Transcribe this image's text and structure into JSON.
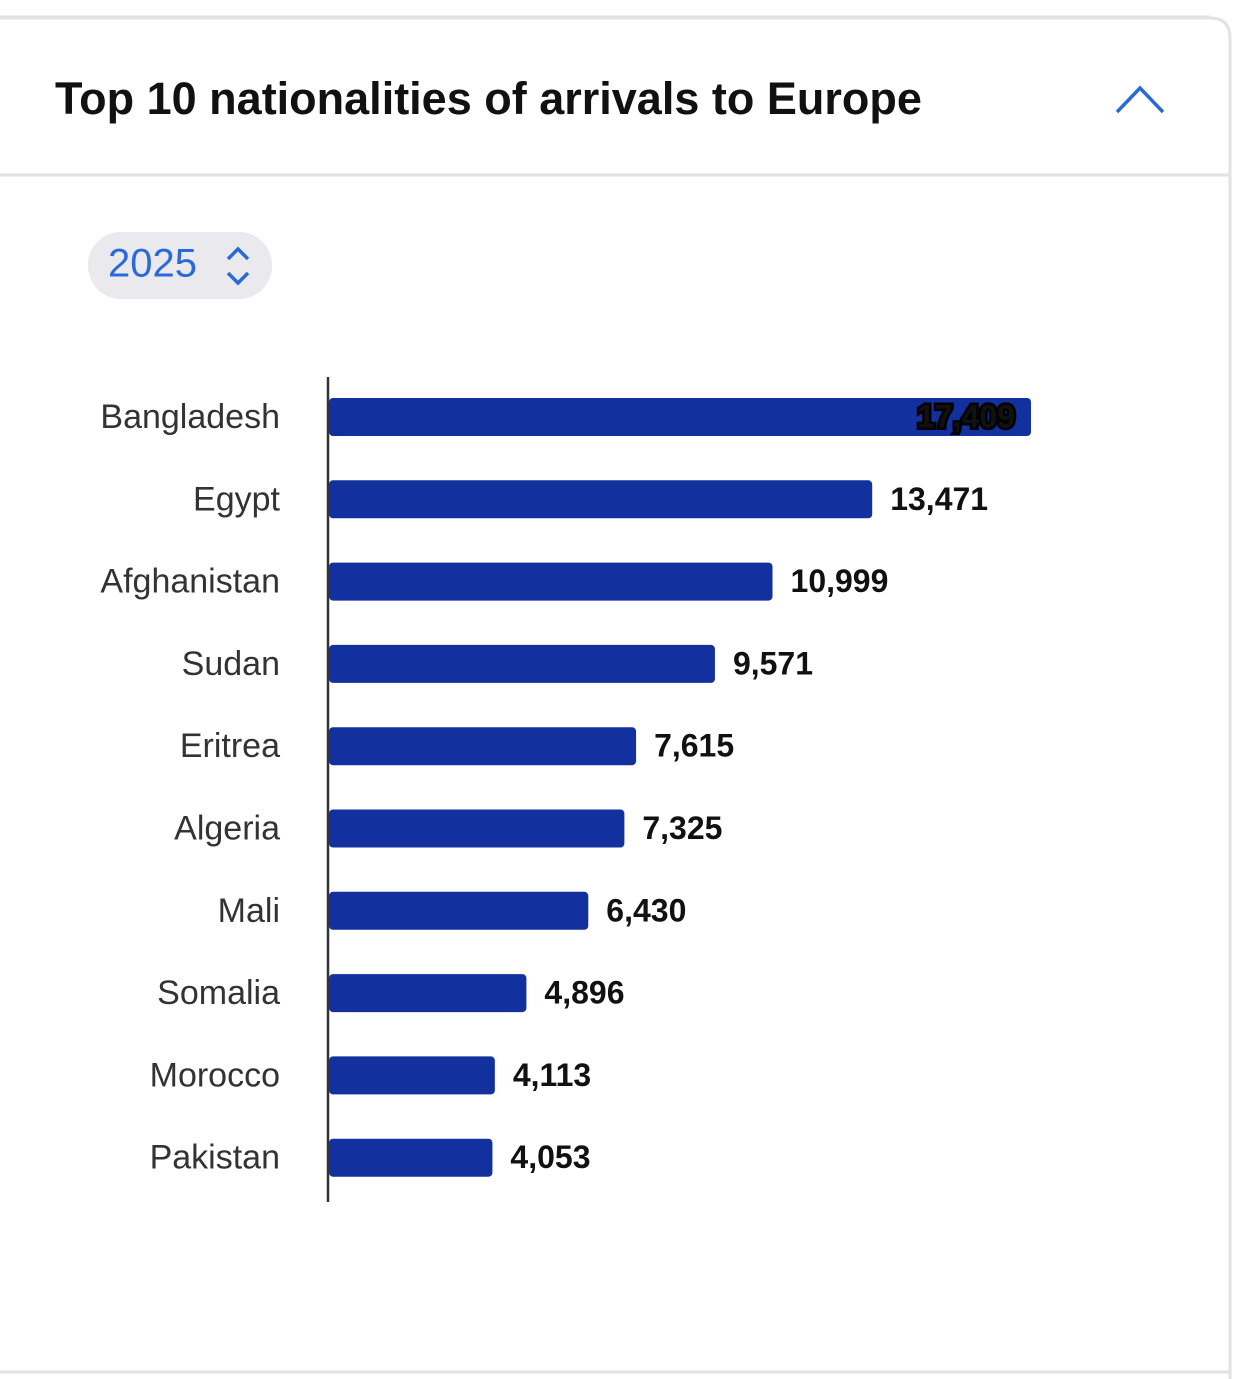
{
  "header": {
    "title": "Top 10 nationalities of arrivals to Europe"
  },
  "selector": {
    "label": "2025"
  },
  "chart_data": {
    "type": "hbar",
    "categories": [
      "Bangladesh",
      "Egypt",
      "Afghanistan",
      "Sudan",
      "Eritrea",
      "Algeria",
      "Mali",
      "Somalia",
      "Morocco",
      "Pakistan"
    ],
    "values": [
      17409,
      13471,
      10999,
      9571,
      7615,
      7325,
      6430,
      4896,
      4113,
      4053
    ],
    "value_labels": [
      "17,409",
      "13,471",
      "10,999",
      "9,571",
      "7,615",
      "7,325",
      "6,430",
      "4,896",
      "4,113",
      "4,053"
    ],
    "color": "#13319e"
  }
}
